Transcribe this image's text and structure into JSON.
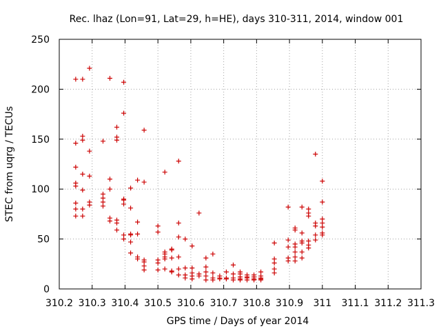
{
  "chart_data": {
    "type": "scatter",
    "title": "Rec. lhaz (Lon=91, Lat=29, h=HE), days 310-311, 2014, window 001",
    "xlabel": "GPS time / Days of year 2014",
    "ylabel": "STEC from uqrg / TECUs",
    "xlim": [
      310.2,
      311.3
    ],
    "ylim": [
      0,
      250
    ],
    "x_ticks": [
      310.2,
      310.3,
      310.4,
      310.5,
      310.6,
      310.7,
      310.8,
      310.9,
      311.0,
      311.1,
      311.2,
      311.3
    ],
    "x_tick_labels": [
      "310.2",
      "310.3",
      "310.4",
      "310.5",
      "310.6",
      "310.7",
      "310.8",
      "310.9",
      "311",
      "311.1",
      "311.2",
      "311.3"
    ],
    "y_ticks": [
      0,
      50,
      100,
      150,
      200,
      250
    ],
    "y_tick_labels": [
      "0",
      "50",
      "100",
      "150",
      "200",
      "250"
    ],
    "grid": true,
    "marker": "+",
    "color": "#cc0000",
    "series": [
      {
        "points": [
          [
            310.25,
            210
          ],
          [
            310.25,
            146
          ],
          [
            310.25,
            122
          ],
          [
            310.25,
            106
          ],
          [
            310.25,
            103
          ],
          [
            310.25,
            86
          ],
          [
            310.25,
            80
          ],
          [
            310.25,
            73
          ],
          [
            310.271,
            210
          ],
          [
            310.271,
            153
          ],
          [
            310.271,
            149
          ],
          [
            310.271,
            115
          ],
          [
            310.271,
            99
          ],
          [
            310.271,
            80
          ],
          [
            310.271,
            73
          ],
          [
            310.292,
            221
          ],
          [
            310.292,
            138
          ],
          [
            310.292,
            113
          ],
          [
            310.292,
            87
          ],
          [
            310.292,
            84
          ],
          [
            310.333,
            148
          ],
          [
            310.333,
            95
          ],
          [
            310.333,
            91
          ],
          [
            310.333,
            87
          ],
          [
            310.333,
            83
          ],
          [
            310.354,
            211
          ],
          [
            310.354,
            110
          ],
          [
            310.354,
            100
          ],
          [
            310.354,
            71
          ],
          [
            310.354,
            68
          ],
          [
            310.375,
            162
          ],
          [
            310.375,
            152
          ],
          [
            310.375,
            149
          ],
          [
            310.375,
            69
          ],
          [
            310.375,
            66
          ],
          [
            310.375,
            59
          ],
          [
            310.396,
            207
          ],
          [
            310.396,
            176
          ],
          [
            310.396,
            90
          ],
          [
            310.396,
            89
          ],
          [
            310.396,
            85
          ],
          [
            310.396,
            54
          ],
          [
            310.396,
            50
          ],
          [
            310.417,
            101
          ],
          [
            310.417,
            81
          ],
          [
            310.417,
            55
          ],
          [
            310.417,
            54
          ],
          [
            310.417,
            47
          ],
          [
            310.417,
            36
          ],
          [
            310.438,
            109
          ],
          [
            310.438,
            67
          ],
          [
            310.438,
            55
          ],
          [
            310.438,
            32
          ],
          [
            310.438,
            30
          ],
          [
            310.458,
            159
          ],
          [
            310.458,
            107
          ],
          [
            310.458,
            29
          ],
          [
            310.458,
            27
          ],
          [
            310.458,
            23
          ],
          [
            310.458,
            19
          ],
          [
            310.5,
            63
          ],
          [
            310.5,
            57
          ],
          [
            310.5,
            29
          ],
          [
            310.5,
            26
          ],
          [
            310.5,
            19
          ],
          [
            310.521,
            117
          ],
          [
            310.521,
            37
          ],
          [
            310.521,
            35
          ],
          [
            310.521,
            32
          ],
          [
            310.521,
            30
          ],
          [
            310.521,
            20
          ],
          [
            310.542,
            40
          ],
          [
            310.542,
            39
          ],
          [
            310.542,
            31
          ],
          [
            310.542,
            18
          ],
          [
            310.542,
            17
          ],
          [
            310.563,
            128
          ],
          [
            310.563,
            66
          ],
          [
            310.563,
            52
          ],
          [
            310.563,
            32
          ],
          [
            310.563,
            20
          ],
          [
            310.563,
            14
          ],
          [
            310.583,
            50
          ],
          [
            310.583,
            21
          ],
          [
            310.583,
            14
          ],
          [
            310.583,
            11
          ],
          [
            310.604,
            43
          ],
          [
            310.604,
            21
          ],
          [
            310.604,
            16
          ],
          [
            310.604,
            13
          ],
          [
            310.604,
            10
          ],
          [
            310.625,
            76
          ],
          [
            310.625,
            15
          ],
          [
            310.625,
            13
          ],
          [
            310.646,
            31
          ],
          [
            310.646,
            22
          ],
          [
            310.646,
            17
          ],
          [
            310.646,
            13
          ],
          [
            310.646,
            9
          ],
          [
            310.667,
            35
          ],
          [
            310.667,
            16
          ],
          [
            310.667,
            11
          ],
          [
            310.667,
            9
          ],
          [
            310.688,
            13
          ],
          [
            310.688,
            11
          ],
          [
            310.688,
            10
          ],
          [
            310.708,
            17
          ],
          [
            310.708,
            11
          ],
          [
            310.708,
            10
          ],
          [
            310.729,
            24
          ],
          [
            310.729,
            15
          ],
          [
            310.729,
            11
          ],
          [
            310.729,
            9
          ],
          [
            310.75,
            17
          ],
          [
            310.75,
            15
          ],
          [
            310.75,
            12
          ],
          [
            310.75,
            10
          ],
          [
            310.75,
            9
          ],
          [
            310.771,
            14
          ],
          [
            310.771,
            12
          ],
          [
            310.771,
            11
          ],
          [
            310.771,
            9
          ],
          [
            310.792,
            14
          ],
          [
            310.792,
            12
          ],
          [
            310.792,
            10
          ],
          [
            310.792,
            9
          ],
          [
            310.813,
            17
          ],
          [
            310.813,
            13
          ],
          [
            310.813,
            11
          ],
          [
            310.813,
            10
          ],
          [
            310.813,
            9
          ],
          [
            310.854,
            46
          ],
          [
            310.854,
            30
          ],
          [
            310.854,
            26
          ],
          [
            310.854,
            20
          ],
          [
            310.854,
            16
          ],
          [
            310.896,
            82
          ],
          [
            310.896,
            49
          ],
          [
            310.896,
            42
          ],
          [
            310.896,
            31
          ],
          [
            310.896,
            28
          ],
          [
            310.917,
            61
          ],
          [
            310.917,
            59
          ],
          [
            310.917,
            45
          ],
          [
            310.917,
            42
          ],
          [
            310.917,
            37
          ],
          [
            310.917,
            32
          ],
          [
            310.917,
            28
          ],
          [
            310.938,
            82
          ],
          [
            310.938,
            56
          ],
          [
            310.938,
            48
          ],
          [
            310.938,
            46
          ],
          [
            310.938,
            37
          ],
          [
            310.938,
            31
          ],
          [
            310.958,
            80
          ],
          [
            310.958,
            76
          ],
          [
            310.958,
            73
          ],
          [
            310.958,
            48
          ],
          [
            310.958,
            44
          ],
          [
            310.958,
            41
          ],
          [
            310.979,
            135
          ],
          [
            310.979,
            66
          ],
          [
            310.979,
            63
          ],
          [
            310.979,
            54
          ],
          [
            310.979,
            49
          ],
          [
            311.0,
            108
          ],
          [
            311.0,
            87
          ],
          [
            311.0,
            70
          ],
          [
            311.0,
            66
          ],
          [
            311.0,
            62
          ],
          [
            311.0,
            56
          ],
          [
            311.0,
            54
          ]
        ]
      }
    ]
  }
}
